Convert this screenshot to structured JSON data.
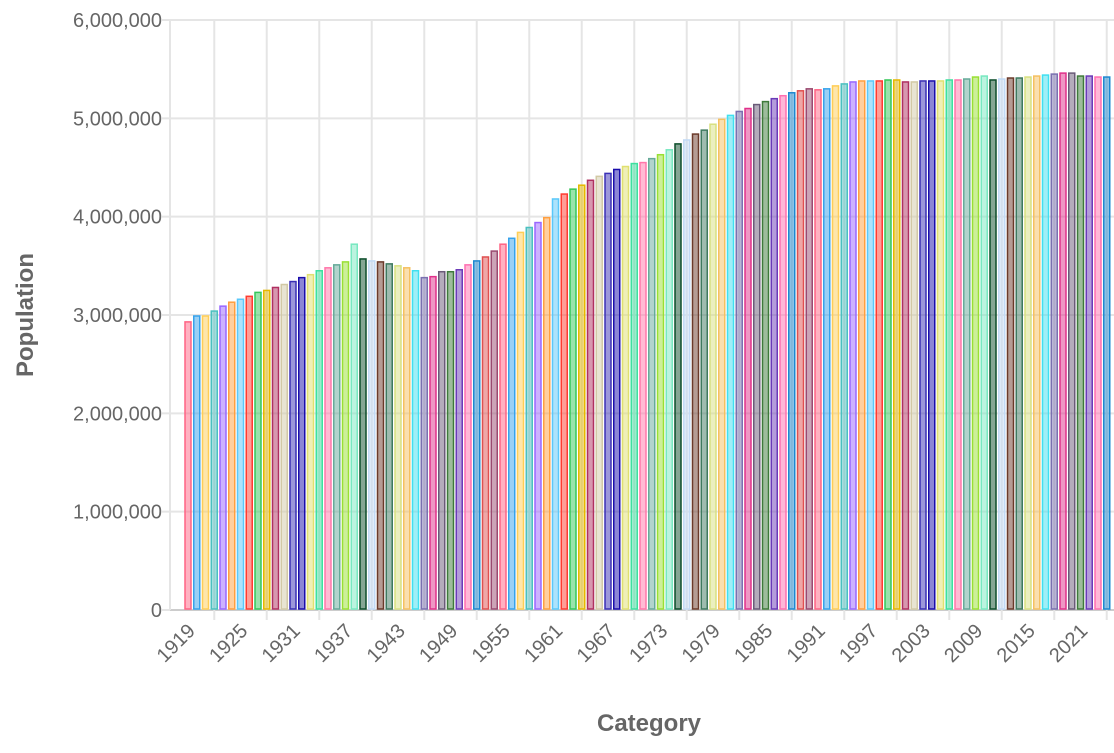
{
  "chart_data": {
    "type": "bar",
    "title": "",
    "xlabel": "Category",
    "ylabel": "Population",
    "ylim": [
      0,
      6000000
    ],
    "yticks": [
      "0",
      "1,000,000",
      "2,000,000",
      "3,000,000",
      "4,000,000",
      "5,000,000",
      "6,000,000"
    ],
    "xtick_labels": [
      "1919",
      "1925",
      "1931",
      "1937",
      "1943",
      "1949",
      "1955",
      "1961",
      "1967",
      "1973",
      "1979",
      "1985",
      "1991",
      "1997",
      "2003",
      "2009",
      "2015",
      "2021"
    ],
    "grid": true,
    "legend": "none",
    "category_start": 1916,
    "category_end": 2021,
    "values": [
      2930000,
      2990000,
      2990000,
      3040000,
      3090000,
      3130000,
      3160000,
      3190000,
      3230000,
      3250000,
      3280000,
      3310000,
      3340000,
      3380000,
      3410000,
      3450000,
      3480000,
      3510000,
      3540000,
      3720000,
      3570000,
      3550000,
      3540000,
      3520000,
      3500000,
      3480000,
      3450000,
      3380000,
      3390000,
      3440000,
      3440000,
      3460000,
      3510000,
      3550000,
      3590000,
      3650000,
      3720000,
      3780000,
      3840000,
      3890000,
      3940000,
      3990000,
      4180000,
      4230000,
      4280000,
      4320000,
      4370000,
      4410000,
      4440000,
      4480000,
      4510000,
      4540000,
      4550000,
      4590000,
      4630000,
      4680000,
      4740000,
      4780000,
      4840000,
      4880000,
      4940000,
      4990000,
      5030000,
      5070000,
      5100000,
      5140000,
      5170000,
      5200000,
      5230000,
      5260000,
      5280000,
      5300000,
      5290000,
      5300000,
      5330000,
      5350000,
      5370000,
      5380000,
      5380000,
      5380000,
      5390000,
      5390000,
      5370000,
      5370000,
      5380000,
      5380000,
      5380000,
      5390000,
      5390000,
      5400000,
      5420000,
      5430000,
      5390000,
      5400000,
      5410000,
      5410000,
      5420000,
      5430000,
      5440000,
      5450000,
      5460000,
      5460000,
      5430000,
      5430000,
      5420000,
      5420000
    ],
    "colors": [
      "#ff6384",
      "#36a2eb",
      "#ffce56",
      "#4bc0c0",
      "#9966ff",
      "#ff9f40",
      "#5ac8fa",
      "#ff3b30",
      "#34c759",
      "#e6b800",
      "#b03060",
      "#d2c9a5",
      "#3a2fb5",
      "#1a0dab",
      "#e0e070",
      "#3ee0a0",
      "#ff77aa",
      "#66aa99",
      "#99e033",
      "#77e8c0",
      "#0b4d2a",
      "#c2daf5",
      "#6b3a2a",
      "#3e7a5f",
      "#d8e080",
      "#f5c060",
      "#40e0f0",
      "#7a70b0",
      "#e0308a",
      "#6a5a78",
      "#3e7a3a",
      "#6a3ab8",
      "#ff6fb0",
      "#1e88d0",
      "#e05050",
      "#9a4a70"
    ],
    "bar_fill_opacity": 0.5
  }
}
